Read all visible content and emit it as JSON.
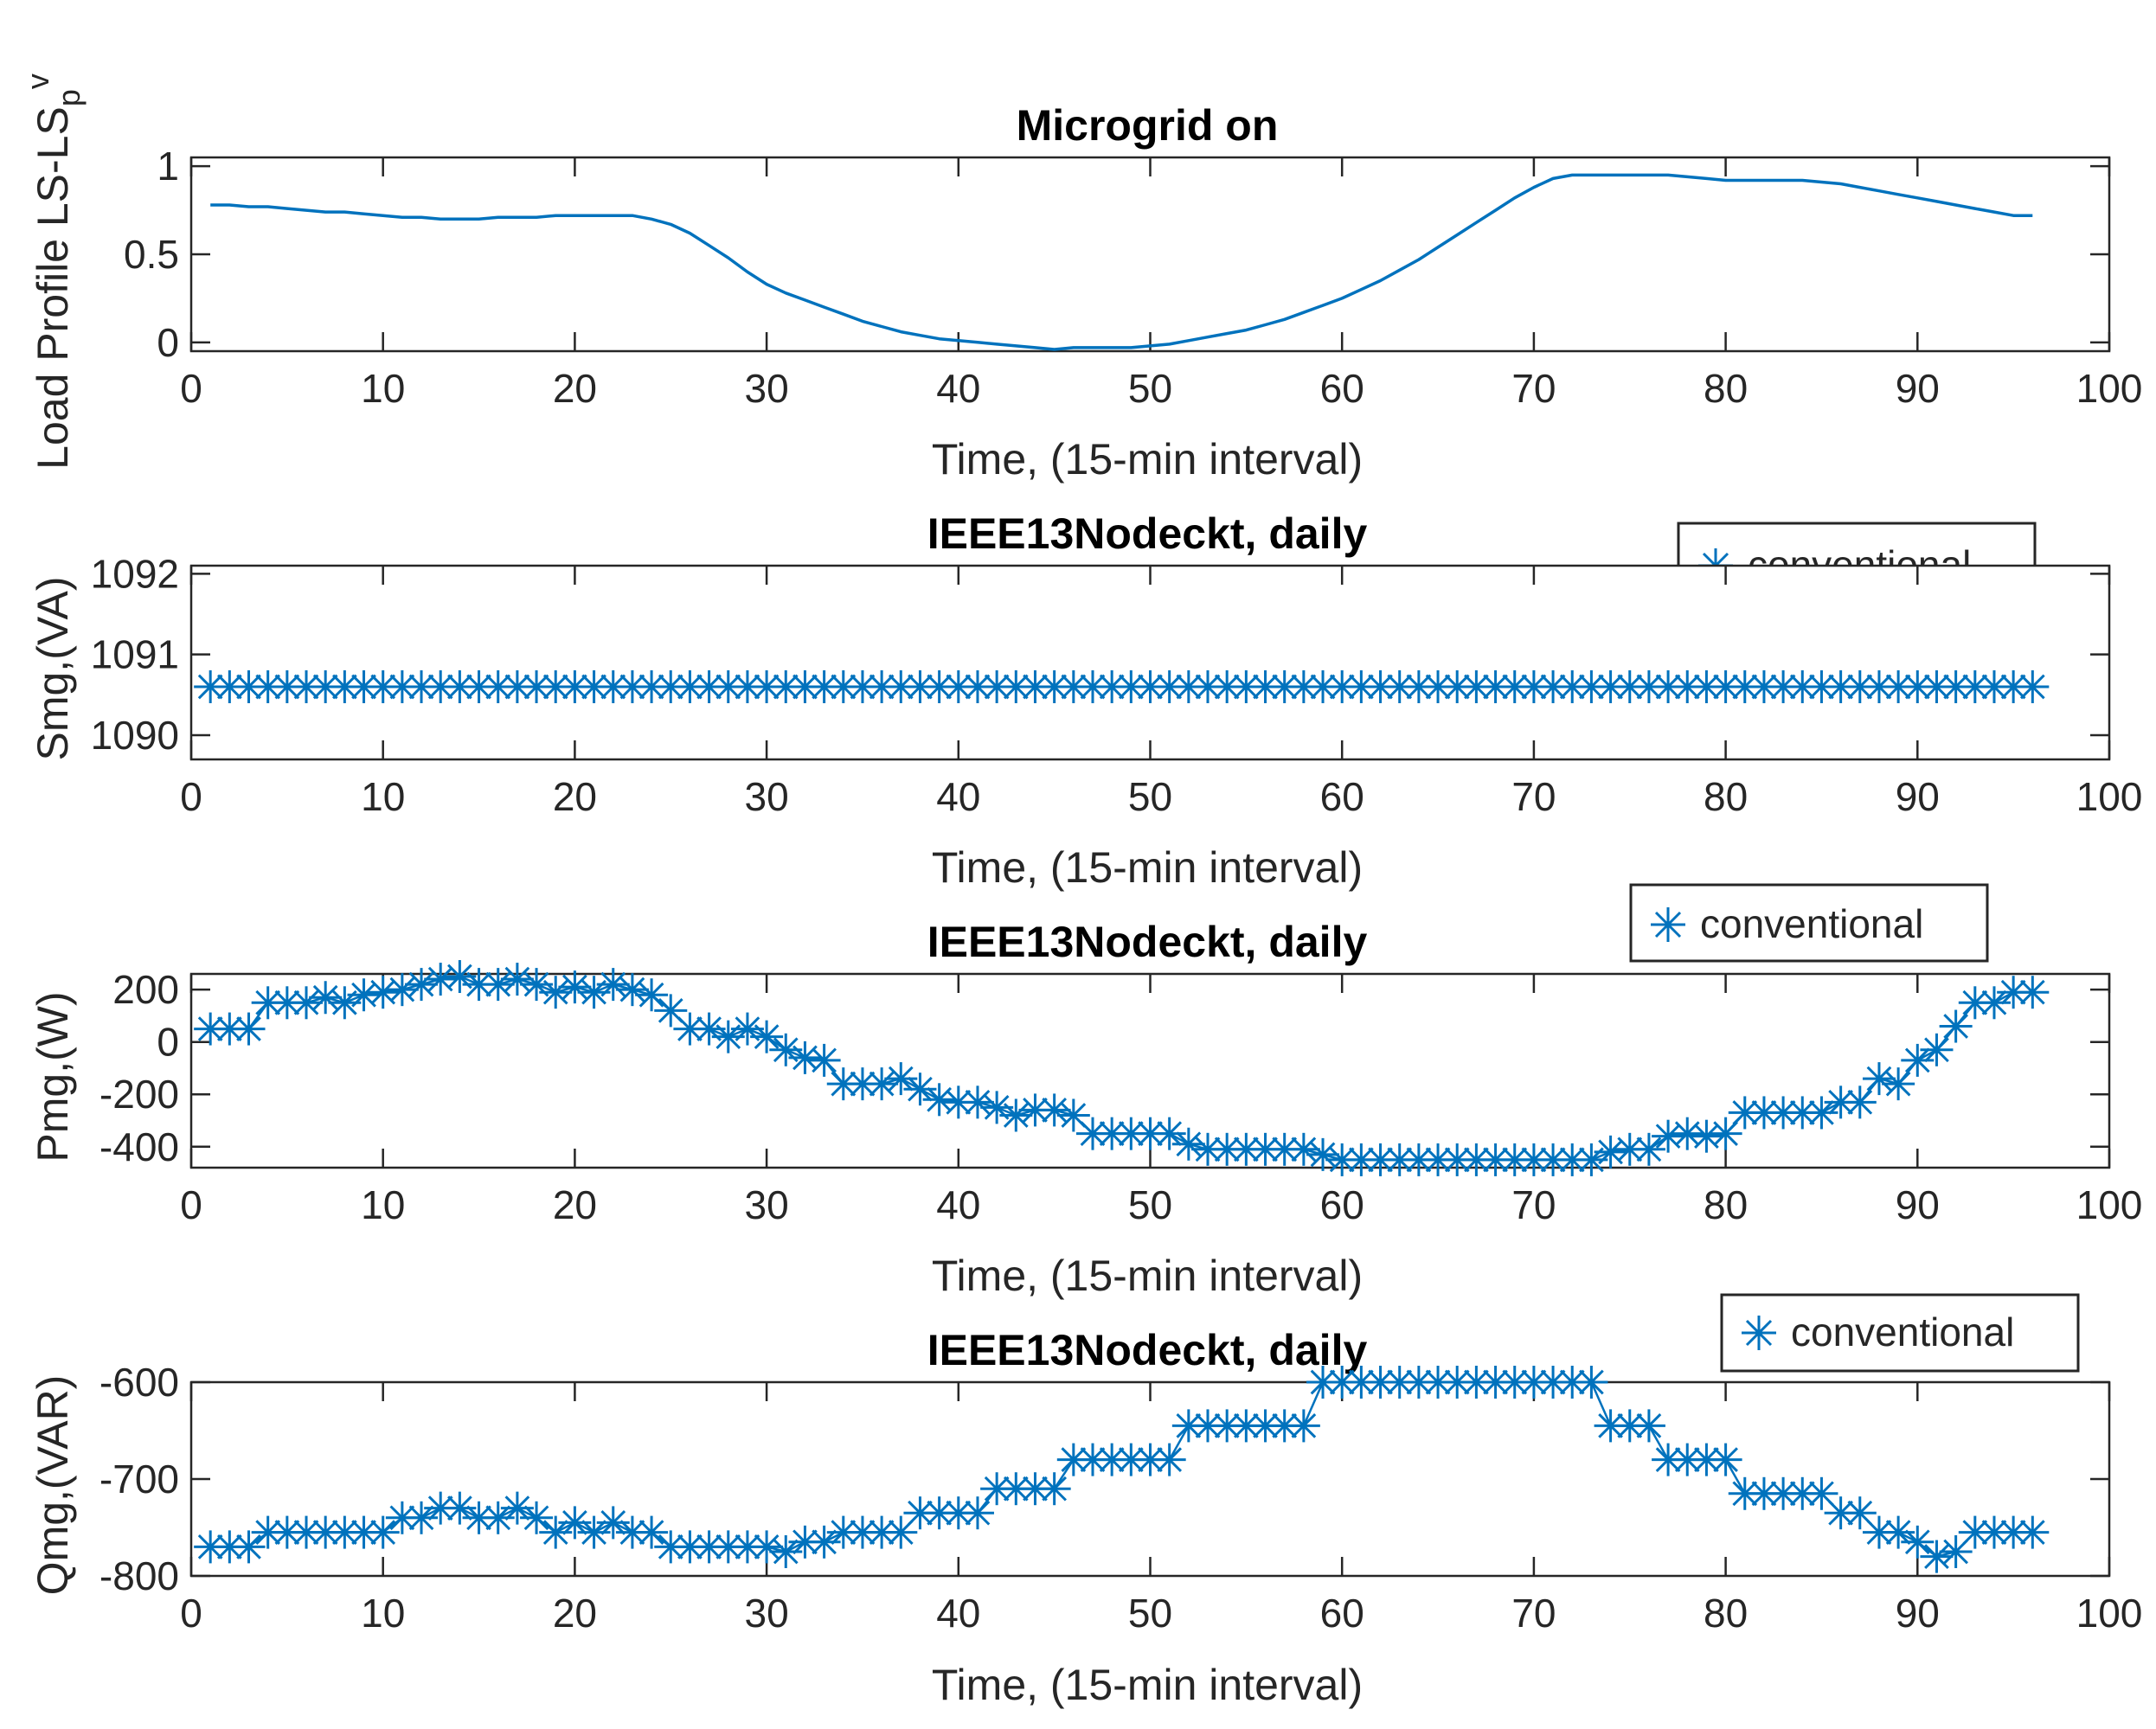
{
  "line_color": "#0072BD",
  "axes_color": "#262626",
  "chart_data": [
    {
      "type": "line",
      "title": "Microgrid on",
      "xlabel": "Time, (15-min interval)",
      "ylabel": "Load Profile LS-LS",
      "ylabel_sub": "p",
      "ylabel_sup": "v",
      "xlim": [
        0,
        100
      ],
      "ylim": [
        -0.05,
        1.05
      ],
      "xticks": [
        0,
        10,
        20,
        30,
        40,
        50,
        60,
        70,
        80,
        90,
        100
      ],
      "yticks": [
        0,
        0.5,
        1
      ],
      "ytick_labels": [
        "0",
        "0.5",
        "1"
      ],
      "marker": "none",
      "legend": null,
      "x": [
        1,
        2,
        3,
        4,
        5,
        6,
        7,
        8,
        9,
        10,
        11,
        12,
        13,
        14,
        15,
        16,
        17,
        18,
        19,
        20,
        21,
        22,
        23,
        24,
        25,
        26,
        27,
        28,
        29,
        30,
        31,
        32,
        33,
        34,
        35,
        36,
        37,
        38,
        39,
        40,
        41,
        42,
        43,
        44,
        45,
        46,
        47,
        48,
        49,
        50,
        51,
        52,
        53,
        54,
        55,
        56,
        57,
        58,
        59,
        60,
        61,
        62,
        63,
        64,
        65,
        66,
        67,
        68,
        69,
        70,
        71,
        72,
        73,
        74,
        75,
        76,
        77,
        78,
        79,
        80,
        81,
        82,
        83,
        84,
        85,
        86,
        87,
        88,
        89,
        90,
        91,
        92,
        93,
        94,
        95,
        96
      ],
      "y": [
        0.78,
        0.78,
        0.77,
        0.77,
        0.76,
        0.75,
        0.74,
        0.74,
        0.73,
        0.72,
        0.71,
        0.71,
        0.7,
        0.7,
        0.7,
        0.71,
        0.71,
        0.71,
        0.72,
        0.72,
        0.72,
        0.72,
        0.72,
        0.7,
        0.67,
        0.62,
        0.55,
        0.48,
        0.4,
        0.33,
        0.28,
        0.24,
        0.2,
        0.16,
        0.12,
        0.09,
        0.06,
        0.04,
        0.02,
        0.01,
        0.0,
        -0.01,
        -0.02,
        -0.03,
        -0.04,
        -0.03,
        -0.03,
        -0.03,
        -0.03,
        -0.02,
        -0.01,
        0.01,
        0.03,
        0.05,
        0.07,
        0.1,
        0.13,
        0.17,
        0.21,
        0.25,
        0.3,
        0.35,
        0.41,
        0.47,
        0.54,
        0.61,
        0.68,
        0.75,
        0.82,
        0.88,
        0.93,
        0.95,
        0.95,
        0.95,
        0.95,
        0.95,
        0.95,
        0.94,
        0.93,
        0.92,
        0.92,
        0.92,
        0.92,
        0.92,
        0.91,
        0.9,
        0.88,
        0.86,
        0.84,
        0.82,
        0.8,
        0.78,
        0.76,
        0.74,
        0.72,
        0.72
      ]
    },
    {
      "type": "scatter",
      "title": "IEEE13Nodeckt, daily",
      "xlabel": "Time, (15-min interval)",
      "ylabel": "Smg,(VA)",
      "xlim": [
        0,
        100
      ],
      "ylim": [
        1089.7,
        1092.1
      ],
      "xticks": [
        0,
        10,
        20,
        30,
        40,
        50,
        60,
        70,
        80,
        90,
        100
      ],
      "yticks": [
        1090,
        1091,
        1092
      ],
      "ytick_labels": [
        "1090",
        "1091",
        "1092"
      ],
      "marker": "asterisk",
      "legend": {
        "label": "conventional",
        "position": "top-right"
      },
      "x": [
        1,
        2,
        3,
        4,
        5,
        6,
        7,
        8,
        9,
        10,
        11,
        12,
        13,
        14,
        15,
        16,
        17,
        18,
        19,
        20,
        21,
        22,
        23,
        24,
        25,
        26,
        27,
        28,
        29,
        30,
        31,
        32,
        33,
        34,
        35,
        36,
        37,
        38,
        39,
        40,
        41,
        42,
        43,
        44,
        45,
        46,
        47,
        48,
        49,
        50,
        51,
        52,
        53,
        54,
        55,
        56,
        57,
        58,
        59,
        60,
        61,
        62,
        63,
        64,
        65,
        66,
        67,
        68,
        69,
        70,
        71,
        72,
        73,
        74,
        75,
        76,
        77,
        78,
        79,
        80,
        81,
        82,
        83,
        84,
        85,
        86,
        87,
        88,
        89,
        90,
        91,
        92,
        93,
        94,
        95,
        96
      ],
      "y": [
        1090.6,
        1090.6,
        1090.6,
        1090.6,
        1090.6,
        1090.6,
        1090.6,
        1090.6,
        1090.6,
        1090.6,
        1090.6,
        1090.6,
        1090.6,
        1090.6,
        1090.6,
        1090.6,
        1090.6,
        1090.6,
        1090.6,
        1090.6,
        1090.6,
        1090.6,
        1090.6,
        1090.6,
        1090.6,
        1090.6,
        1090.6,
        1090.6,
        1090.6,
        1090.6,
        1090.6,
        1090.6,
        1090.6,
        1090.6,
        1090.6,
        1090.6,
        1090.6,
        1090.6,
        1090.6,
        1090.6,
        1090.6,
        1090.6,
        1090.6,
        1090.6,
        1090.6,
        1090.6,
        1090.6,
        1090.6,
        1090.6,
        1090.6,
        1090.6,
        1090.6,
        1090.6,
        1090.6,
        1090.6,
        1090.6,
        1090.6,
        1090.6,
        1090.6,
        1090.6,
        1090.6,
        1090.6,
        1090.6,
        1090.6,
        1090.6,
        1090.6,
        1090.6,
        1090.6,
        1090.6,
        1090.6,
        1090.6,
        1090.6,
        1090.6,
        1090.6,
        1090.6,
        1090.6,
        1090.6,
        1090.6,
        1090.6,
        1090.6,
        1090.6,
        1090.6,
        1090.6,
        1090.6,
        1090.6,
        1090.6,
        1090.6,
        1090.6,
        1090.6,
        1090.6,
        1090.6,
        1090.6,
        1090.6,
        1090.6,
        1090.6,
        1090.6
      ]
    },
    {
      "type": "scatter",
      "title": "IEEE13Nodeckt, daily",
      "xlabel": "Time, (15-min interval)",
      "ylabel": "Pmg,(W)",
      "xlim": [
        0,
        100
      ],
      "ylim": [
        -480,
        260
      ],
      "xticks": [
        0,
        10,
        20,
        30,
        40,
        50,
        60,
        70,
        80,
        90,
        100
      ],
      "yticks": [
        -400,
        -200,
        0,
        200
      ],
      "ytick_labels": [
        "-400",
        "-200",
        "0",
        "200"
      ],
      "marker": "asterisk",
      "legend": {
        "label": "conventional",
        "position": "top-right"
      },
      "x": [
        1,
        2,
        3,
        4,
        5,
        6,
        7,
        8,
        9,
        10,
        11,
        12,
        13,
        14,
        15,
        16,
        17,
        18,
        19,
        20,
        21,
        22,
        23,
        24,
        25,
        26,
        27,
        28,
        29,
        30,
        31,
        32,
        33,
        34,
        35,
        36,
        37,
        38,
        39,
        40,
        41,
        42,
        43,
        44,
        45,
        46,
        47,
        48,
        49,
        50,
        51,
        52,
        53,
        54,
        55,
        56,
        57,
        58,
        59,
        60,
        61,
        62,
        63,
        64,
        65,
        66,
        67,
        68,
        69,
        70,
        71,
        72,
        73,
        74,
        75,
        76,
        77,
        78,
        79,
        80,
        81,
        82,
        83,
        84,
        85,
        86,
        87,
        88,
        89,
        90,
        91,
        92,
        93,
        94,
        95,
        96
      ],
      "y": [
        50,
        50,
        50,
        150,
        150,
        150,
        170,
        150,
        180,
        190,
        200,
        220,
        240,
        250,
        220,
        220,
        240,
        220,
        190,
        210,
        190,
        220,
        200,
        180,
        120,
        50,
        50,
        20,
        50,
        20,
        -30,
        -60,
        -70,
        -160,
        -160,
        -160,
        -140,
        -180,
        -220,
        -230,
        -230,
        -250,
        -280,
        -260,
        -260,
        -280,
        -350,
        -350,
        -350,
        -350,
        -350,
        -390,
        -410,
        -410,
        -410,
        -410,
        -410,
        -410,
        -430,
        -450,
        -450,
        -450,
        -450,
        -450,
        -450,
        -450,
        -450,
        -450,
        -450,
        -450,
        -450,
        -450,
        -450,
        -420,
        -410,
        -410,
        -360,
        -350,
        -360,
        -350,
        -270,
        -270,
        -270,
        -270,
        -270,
        -230,
        -230,
        -140,
        -160,
        -70,
        -30,
        60,
        150,
        150,
        190,
        190
      ]
    },
    {
      "type": "scatter",
      "title": "IEEE13Nodeckt, daily",
      "xlabel": "Time, (15-min interval)",
      "ylabel": "Qmg,(VAR)",
      "xlim": [
        0,
        100
      ],
      "ylim": [
        -800,
        -600
      ],
      "xticks": [
        0,
        10,
        20,
        30,
        40,
        50,
        60,
        70,
        80,
        90,
        100
      ],
      "yticks": [
        -800,
        -700,
        -600
      ],
      "ytick_labels": [
        "-800",
        "-700",
        "-600"
      ],
      "marker": "asterisk",
      "legend": {
        "label": "conventional",
        "position": "top-right"
      },
      "x": [
        1,
        2,
        3,
        4,
        5,
        6,
        7,
        8,
        9,
        10,
        11,
        12,
        13,
        14,
        15,
        16,
        17,
        18,
        19,
        20,
        21,
        22,
        23,
        24,
        25,
        26,
        27,
        28,
        29,
        30,
        31,
        32,
        33,
        34,
        35,
        36,
        37,
        38,
        39,
        40,
        41,
        42,
        43,
        44,
        45,
        46,
        47,
        48,
        49,
        50,
        51,
        52,
        53,
        54,
        55,
        56,
        57,
        58,
        59,
        60,
        61,
        62,
        63,
        64,
        65,
        66,
        67,
        68,
        69,
        70,
        71,
        72,
        73,
        74,
        75,
        76,
        77,
        78,
        79,
        80,
        81,
        82,
        83,
        84,
        85,
        86,
        87,
        88,
        89,
        90,
        91,
        92,
        93,
        94,
        95,
        96
      ],
      "y": [
        -770,
        -770,
        -770,
        -755,
        -755,
        -755,
        -755,
        -755,
        -755,
        -755,
        -740,
        -740,
        -730,
        -730,
        -740,
        -740,
        -730,
        -740,
        -755,
        -745,
        -755,
        -745,
        -755,
        -755,
        -770,
        -770,
        -770,
        -770,
        -770,
        -770,
        -775,
        -765,
        -765,
        -755,
        -755,
        -755,
        -755,
        -735,
        -735,
        -735,
        -735,
        -710,
        -710,
        -710,
        -710,
        -680,
        -680,
        -680,
        -680,
        -680,
        -680,
        -645,
        -645,
        -645,
        -645,
        -645,
        -645,
        -645,
        -600,
        -600,
        -600,
        -600,
        -600,
        -600,
        -600,
        -600,
        -600,
        -600,
        -600,
        -600,
        -600,
        -600,
        -600,
        -645,
        -645,
        -645,
        -680,
        -680,
        -680,
        -680,
        -715,
        -715,
        -715,
        -715,
        -715,
        -735,
        -735,
        -755,
        -755,
        -765,
        -780,
        -775,
        -755,
        -755,
        -755,
        -755
      ]
    }
  ]
}
